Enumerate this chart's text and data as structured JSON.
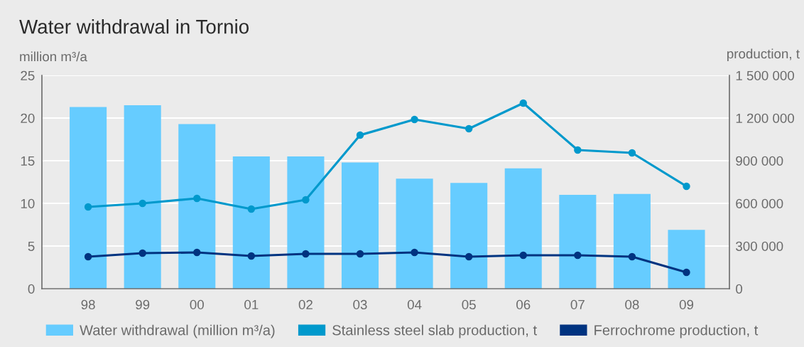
{
  "chart_data": {
    "type": "bar",
    "title": "Water withdrawal in Tornio",
    "ylabel": "million m³/a",
    "y2label": "production, t",
    "categories": [
      "98",
      "99",
      "00",
      "01",
      "02",
      "03",
      "04",
      "05",
      "06",
      "07",
      "08",
      "09"
    ],
    "series": [
      {
        "name": "Water withdrawal (million m³/a)",
        "color": "#66ccff",
        "values": [
          21.3,
          21.5,
          19.3,
          15.5,
          15.5,
          14.8,
          12.9,
          12.4,
          14.1,
          11.0,
          11.1,
          6.9
        ]
      },
      {
        "name": "Stainless steel slab production, t",
        "type": "line",
        "axis": "y2",
        "color": "#0099cc",
        "values": [
          575000,
          600000,
          635000,
          560000,
          625000,
          1080000,
          1190000,
          1125000,
          1305000,
          975000,
          955000,
          720000
        ]
      },
      {
        "name": "Ferrochrome production, t",
        "type": "line",
        "axis": "y2",
        "color": "#003380",
        "values": [
          225000,
          250000,
          255000,
          230000,
          245000,
          245000,
          255000,
          225000,
          235000,
          235000,
          225000,
          115000
        ]
      }
    ],
    "ylim": [
      0,
      25
    ],
    "yticks": [
      0,
      5,
      10,
      15,
      20,
      25
    ],
    "y2lim": [
      0,
      1500000
    ],
    "y2ticks": [
      0,
      {
        "value": 300000,
        "label": "300 000"
      },
      {
        "value": 600000,
        "label": "600 000"
      },
      {
        "value": 900000,
        "label": "900 000"
      },
      {
        "value": 1200000,
        "label": "1 200 000"
      },
      {
        "value": 1500000,
        "label": "1 500 000"
      }
    ],
    "grid": "y",
    "legend": "bottom",
    "marker": "circle",
    "line_style": "solid"
  }
}
